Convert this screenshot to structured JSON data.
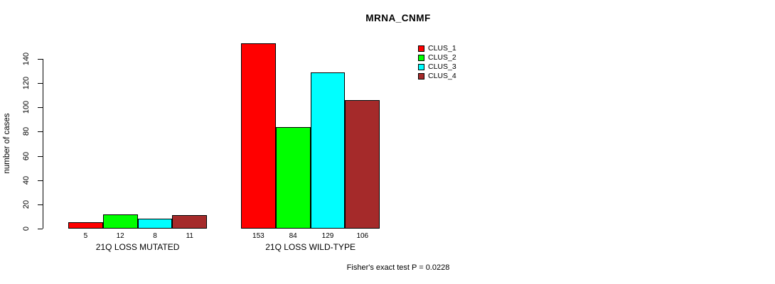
{
  "title": "MRNA_CNMF",
  "y_axis": {
    "label": "number of cases",
    "ticks": [
      0,
      20,
      40,
      60,
      80,
      100,
      120,
      140
    ]
  },
  "footer": "Fisher's exact test P = 0.0228",
  "legend": {
    "items": [
      {
        "label": "CLUS_1",
        "color": "#FF0000"
      },
      {
        "label": "CLUS_2",
        "color": "#00FF00"
      },
      {
        "label": "CLUS_3",
        "color": "#00FFFF"
      },
      {
        "label": "CLUS_4",
        "color": "#A52A2A"
      }
    ]
  },
  "chart_data": {
    "type": "bar",
    "title": "MRNA_CNMF",
    "ylabel": "number of cases",
    "xlabel": "",
    "categories": [
      "21Q LOSS MUTATED",
      "21Q LOSS WILD-TYPE"
    ],
    "series": [
      {
        "name": "CLUS_1",
        "color": "#FF0000",
        "values": [
          5,
          153
        ]
      },
      {
        "name": "CLUS_2",
        "color": "#00FF00",
        "values": [
          12,
          84
        ]
      },
      {
        "name": "CLUS_3",
        "color": "#00FFFF",
        "values": [
          8,
          129
        ]
      },
      {
        "name": "CLUS_4",
        "color": "#A52A2A",
        "values": [
          11,
          106
        ]
      }
    ],
    "bar_value_labels": [
      [
        5,
        12,
        8,
        11
      ],
      [
        153,
        84,
        129,
        106
      ]
    ],
    "yticks": [
      0,
      20,
      40,
      60,
      80,
      100,
      120,
      140
    ],
    "ylim": [
      0,
      155
    ],
    "grid": false,
    "legend_position": "top-right",
    "annotation": "Fisher's exact test P = 0.0228"
  }
}
